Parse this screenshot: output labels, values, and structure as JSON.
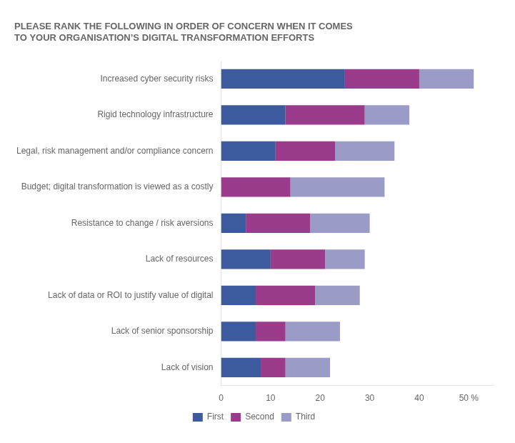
{
  "chart_data": {
    "type": "bar",
    "orientation": "horizontal",
    "stacked": true,
    "title": [
      "PLEASE RANK THE FOLLOWING IN ORDER OF CONCERN WHEN IT COMES",
      "TO YOUR ORGANISATION’S DIGITAL TRANSFORMATION EFFORTS"
    ],
    "categories": [
      "Increased cyber security risks",
      "Rigid technology infrastructure",
      "Legal, risk management and/or compliance concern",
      "Budget; digital transformation is viewed as a costly",
      "Resistance to change / risk aversions",
      "Lack of resources",
      "Lack of data or ROI to justify value of digital",
      "Lack of senior sponsorship",
      "Lack of vision"
    ],
    "series": [
      {
        "name": "First",
        "color": "#3d5a9e",
        "values": [
          25,
          13,
          11,
          0,
          5,
          10,
          7,
          7,
          8
        ]
      },
      {
        "name": "Second",
        "color": "#9b3b8c",
        "values": [
          15,
          16,
          12,
          14,
          13,
          11,
          12,
          6,
          5
        ]
      },
      {
        "name": "Third",
        "color": "#9b9bc8",
        "values": [
          11,
          9,
          12,
          19,
          12,
          8,
          9,
          11,
          9
        ]
      }
    ],
    "xlim": [
      0,
      55
    ],
    "xticks": [
      0,
      10,
      20,
      30,
      40,
      {
        "value": 50,
        "label": "50 %"
      }
    ],
    "grid": false,
    "legend": "bottom"
  }
}
